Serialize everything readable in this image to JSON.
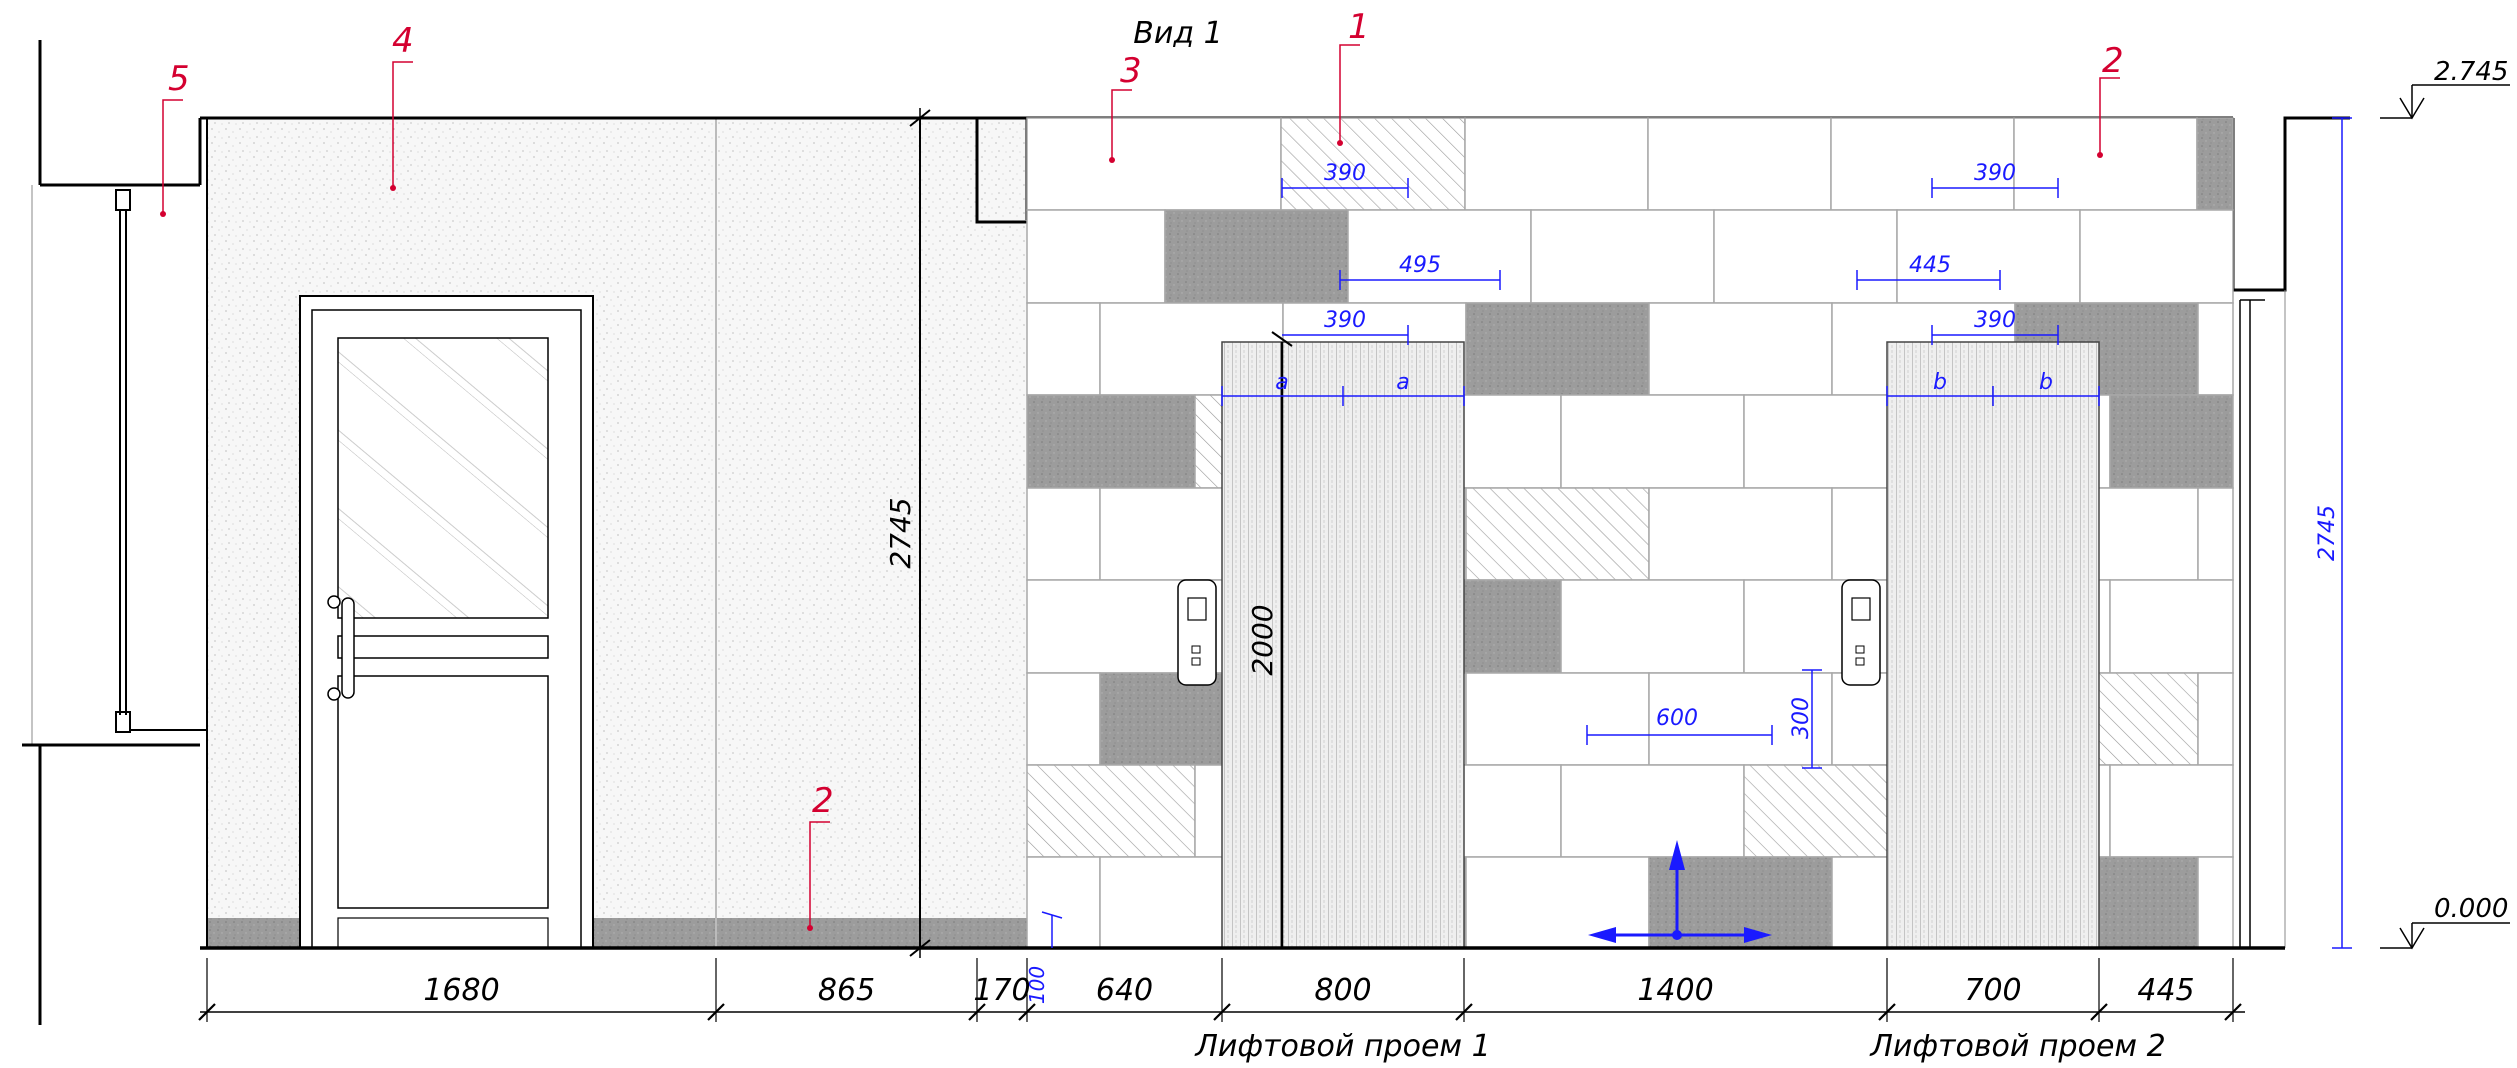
{
  "view_title": "Вид 1",
  "callouts": [
    "1",
    "2",
    "3",
    "4",
    "5",
    "2"
  ],
  "levels": {
    "top": "2.745",
    "bottom": "0.000"
  },
  "dims": {
    "height_left": "2745",
    "height_right": "2745",
    "door_height": "2000",
    "tile_390_a": "390",
    "tile_390_b": "390",
    "tile_495": "495",
    "tile_445": "445",
    "tile_390_c": "390",
    "tile_390_d": "390",
    "a1": "a",
    "a2": "a",
    "b1": "b",
    "b2": "b",
    "tile_600": "600",
    "tile_300": "300",
    "gap_100": "100"
  },
  "bottom_dims": [
    "1680",
    "865",
    "170",
    "640",
    "800",
    "1400",
    "700",
    "445"
  ],
  "openings": [
    "Лифтовой проем 1",
    "Лифтовой проем 2"
  ],
  "colors": {
    "line": "#000000",
    "annotation_red": "#d40030",
    "dimension_blue": "#1a1aff",
    "tile_dark": "#9a9a9a",
    "tile_outline": "#a8a8a8"
  }
}
